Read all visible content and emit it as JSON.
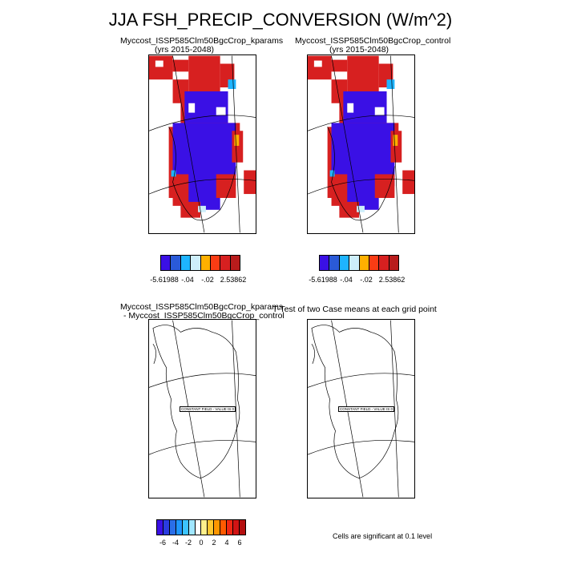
{
  "title": "JJA FSH_PRECIP_CONVERSION (W/m^2)",
  "panels": [
    {
      "id": "kparams",
      "title_line1": "Myccost_ISSP585Clm50BgcCrop_kparams",
      "title_line2": "(yrs 2015-2048)"
    },
    {
      "id": "control",
      "title_line1": "Myccost_ISSP585Clm50BgcCrop_control",
      "title_line2": "(yrs 2015-2048)"
    },
    {
      "id": "difference",
      "title_line1": "Myccost_ISSP585Clm50BgcCrop_kparams",
      "title_line2": "- Myccost_ISSP585Clm50BgcCrop_control",
      "map_label": "CONSTANT FIELD - VALUE IS 0"
    },
    {
      "id": "ttest",
      "title_line1": "T-Test of two Case means at each grid point",
      "map_label": "CONSTANT FIELD - VALUE IS 0"
    }
  ],
  "colorbar_top": {
    "colors": [
      "#3a10e5",
      "#2a5ad8",
      "#1eb4ff",
      "#cdeefa",
      "#ffb000",
      "#fa3c14",
      "#d72020",
      "#b81c1c"
    ],
    "labels": [
      "-5.61988",
      "-.04",
      "-.02",
      "2.53862"
    ]
  },
  "colorbar_bottom": {
    "colors": [
      "#3a10e5",
      "#2a3ce0",
      "#2a6ee8",
      "#1e96ff",
      "#3cc4ff",
      "#a0e6ff",
      "#ffffff",
      "#fff08c",
      "#ffc832",
      "#ff9600",
      "#ff5a00",
      "#f02814",
      "#d21414",
      "#b40f0f"
    ],
    "labels": [
      "-6",
      "-4",
      "-2",
      "0",
      "2",
      "4",
      "6"
    ]
  },
  "significance_note": "Cells are significant at 0.1 level"
}
